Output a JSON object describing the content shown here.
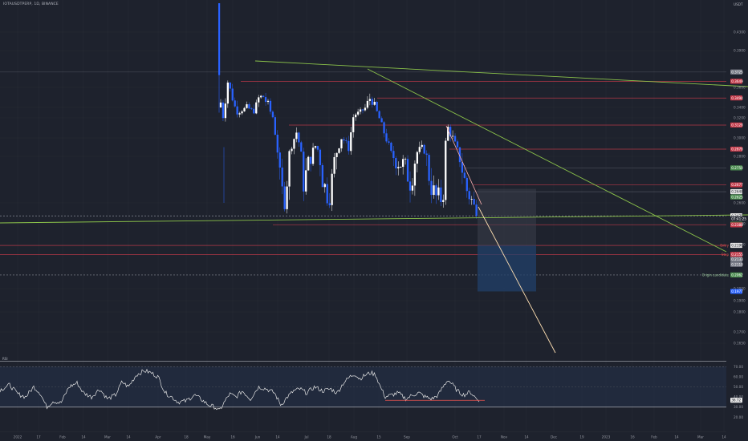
{
  "header": {
    "symbol_line": "IOTAUSDTPERP, 1D, BINANCE"
  },
  "currency": "USDT",
  "rsi_title": "RSI",
  "chart_data": {
    "type": "candlestick",
    "price_axis": {
      "range": [
        0.1555,
        0.448
      ],
      "ticks": [
        "0.4300",
        "0.3900",
        "0.3600",
        "0.3400",
        "0.3200",
        "0.3000",
        "0.2800",
        "0.2600",
        "0.2400",
        "0.2200",
        "0.2000",
        "0.1900",
        "0.1800",
        "0.1700",
        "0.1650"
      ]
    },
    "time_axis": {
      "labels": [
        "2022",
        "17",
        "Feb",
        "14",
        "Mar",
        "14",
        "Apr",
        "18",
        "May",
        "16",
        "Jun",
        "14",
        "Jul",
        "18",
        "Aug",
        "15",
        "Sep",
        "Oct",
        "17",
        "Nov",
        "14",
        "Dec",
        "19",
        "2023",
        "16",
        "Feb",
        "14",
        "Mar",
        "14"
      ]
    },
    "price_labels": [
      {
        "text": "0.3725",
        "value": 0.3725,
        "color": "#787b86"
      },
      {
        "text": "0.3649",
        "value": 0.3649,
        "color": "#c43a4a"
      },
      {
        "text": "0.3494",
        "value": 0.3494,
        "color": "#c43a4a"
      },
      {
        "text": "0.3128",
        "value": 0.3128,
        "color": "#c43a4a"
      },
      {
        "text": "0.2878",
        "value": 0.2878,
        "color": "#c43a4a"
      },
      {
        "text": "0.2750",
        "value": 0.275,
        "color": "#4a8c4f"
      },
      {
        "text": "0.2677",
        "value": 0.2677,
        "color": "#c43a4a"
      },
      {
        "text": "0.2648",
        "value": 0.2648,
        "color": "#e6e6e6"
      },
      {
        "text": "0.2625",
        "value": 0.2625,
        "color": "#4a8c4f"
      },
      {
        "text": "0.2475",
        "value": 0.2475,
        "color": "#e6e6e6"
      },
      {
        "text": "07:41:25",
        "value": 0.2447,
        "color": "#2a2e39"
      },
      {
        "text": "0.2395",
        "value": 0.2395,
        "color": "#4a8c4f"
      },
      {
        "text": "0.2388",
        "value": 0.2388,
        "color": "#c43a4a"
      },
      {
        "text": "0.2196",
        "value": 0.2196,
        "color": "#e6e6e6"
      },
      {
        "text": "0.2155",
        "value": 0.2155,
        "color": "#c43a4a"
      },
      {
        "text": "0.2133",
        "value": 0.2133,
        "color": "#787b86"
      },
      {
        "text": "0.2110",
        "value": 0.211,
        "color": "#787b86"
      },
      {
        "text": "0.2062",
        "value": 0.2062,
        "color": "#4a8c4f"
      },
      {
        "text": "0.1977",
        "value": 0.1977,
        "color": "#2962ff"
      }
    ],
    "annotations": [
      {
        "text": "Entry",
        "value": 0.2196,
        "color": "#ef5350"
      },
      {
        "text": "Stop",
        "value": 0.2155,
        "color": "#ef5350"
      },
      {
        "text": "Origin candidate",
        "value": 0.2062,
        "color": "#9ccc9c"
      }
    ],
    "rsi_axis": {
      "range": [
        25,
        75
      ],
      "ticks": [
        "70.00",
        "60.00",
        "50.00",
        "40.00",
        "36.72",
        "30.00",
        "20.00"
      ],
      "current": "36.72"
    },
    "colors": {
      "up": "#ffffff",
      "down": "#2962ff",
      "background": "#1e222d",
      "trendline": "#8bc34a",
      "projection": "#ffe0b2",
      "resistance": "#c43a4a",
      "rsi_line": "#e6e6e6"
    }
  }
}
